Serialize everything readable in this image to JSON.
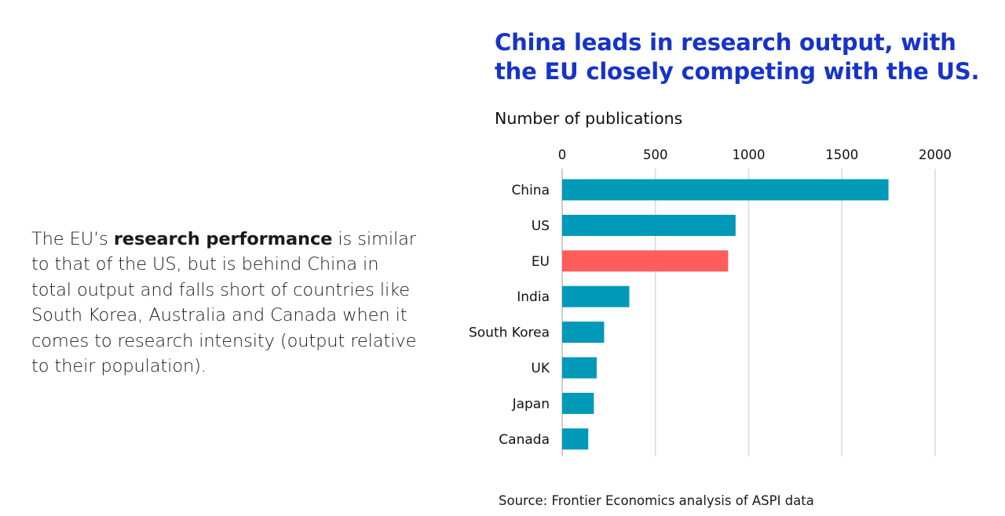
{
  "intro": {
    "prefix": "The EU’s ",
    "bold": "research performance",
    "suffix": " is similar to that of the US, but is behind China in total output and falls short of countries like South Korea, Australia and Canada when it comes to research intensity (output relative to their population)."
  },
  "source": "Source: Frontier Economics analysis of ASPI data",
  "colors": {
    "default_bar": "#0099b8",
    "highlight_bar": "#ff5c5c",
    "title": "#1634c9",
    "grid": "#d9d9d9"
  },
  "chart_data": {
    "type": "bar",
    "orientation": "horizontal",
    "title": "China leads in research output, with the EU closely competing with the US.",
    "xlabel": "Number of publications",
    "ylabel": "",
    "xlim": [
      0,
      2000
    ],
    "xticks": [
      0,
      500,
      1000,
      1500,
      2000
    ],
    "grid": true,
    "axis_position": "top",
    "categories": [
      "China",
      "US",
      "EU",
      "India",
      "South Korea",
      "UK",
      "Japan",
      "Canada"
    ],
    "values": [
      1750,
      930,
      890,
      360,
      225,
      185,
      170,
      140
    ],
    "highlight": [
      "EU"
    ]
  }
}
